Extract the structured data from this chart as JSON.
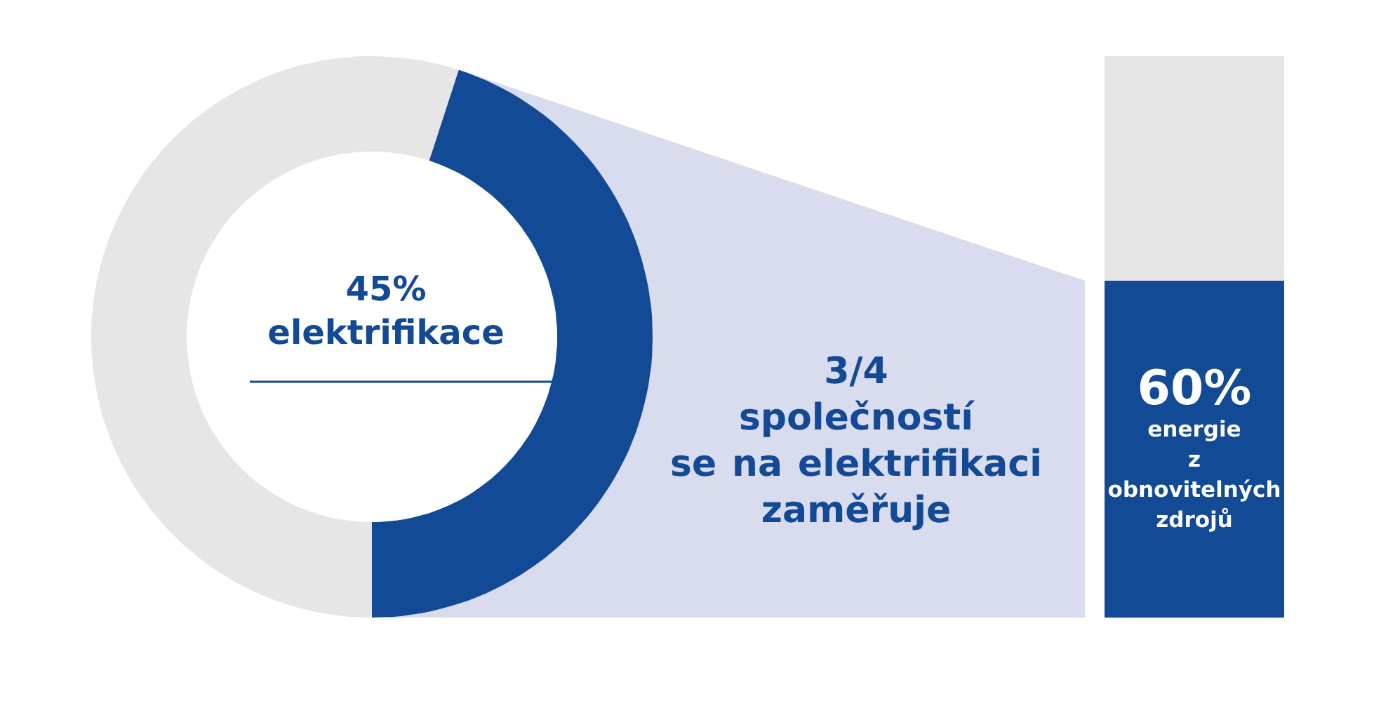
{
  "chart_data": [
    {
      "type": "donut",
      "categories": [
        "elektrifikace",
        null
      ],
      "values": [
        45,
        55
      ],
      "colors": [
        "#134a95",
        "#e6e6e6"
      ],
      "value_labels": [
        "45%",
        null
      ],
      "annotations": [
        "3/4 společností se na elektrifikaci zaměřuje"
      ]
    },
    {
      "type": "bar",
      "stacked": true,
      "categories": [
        null
      ],
      "series": [
        {
          "name": "energie z obnovitelných zdrojů",
          "color": "#134a95",
          "values": [
            60
          ],
          "value_labels": [
            "60%"
          ]
        },
        {
          "color": "#e6e6e6",
          "values": [
            40
          ]
        }
      ]
    }
  ]
}
